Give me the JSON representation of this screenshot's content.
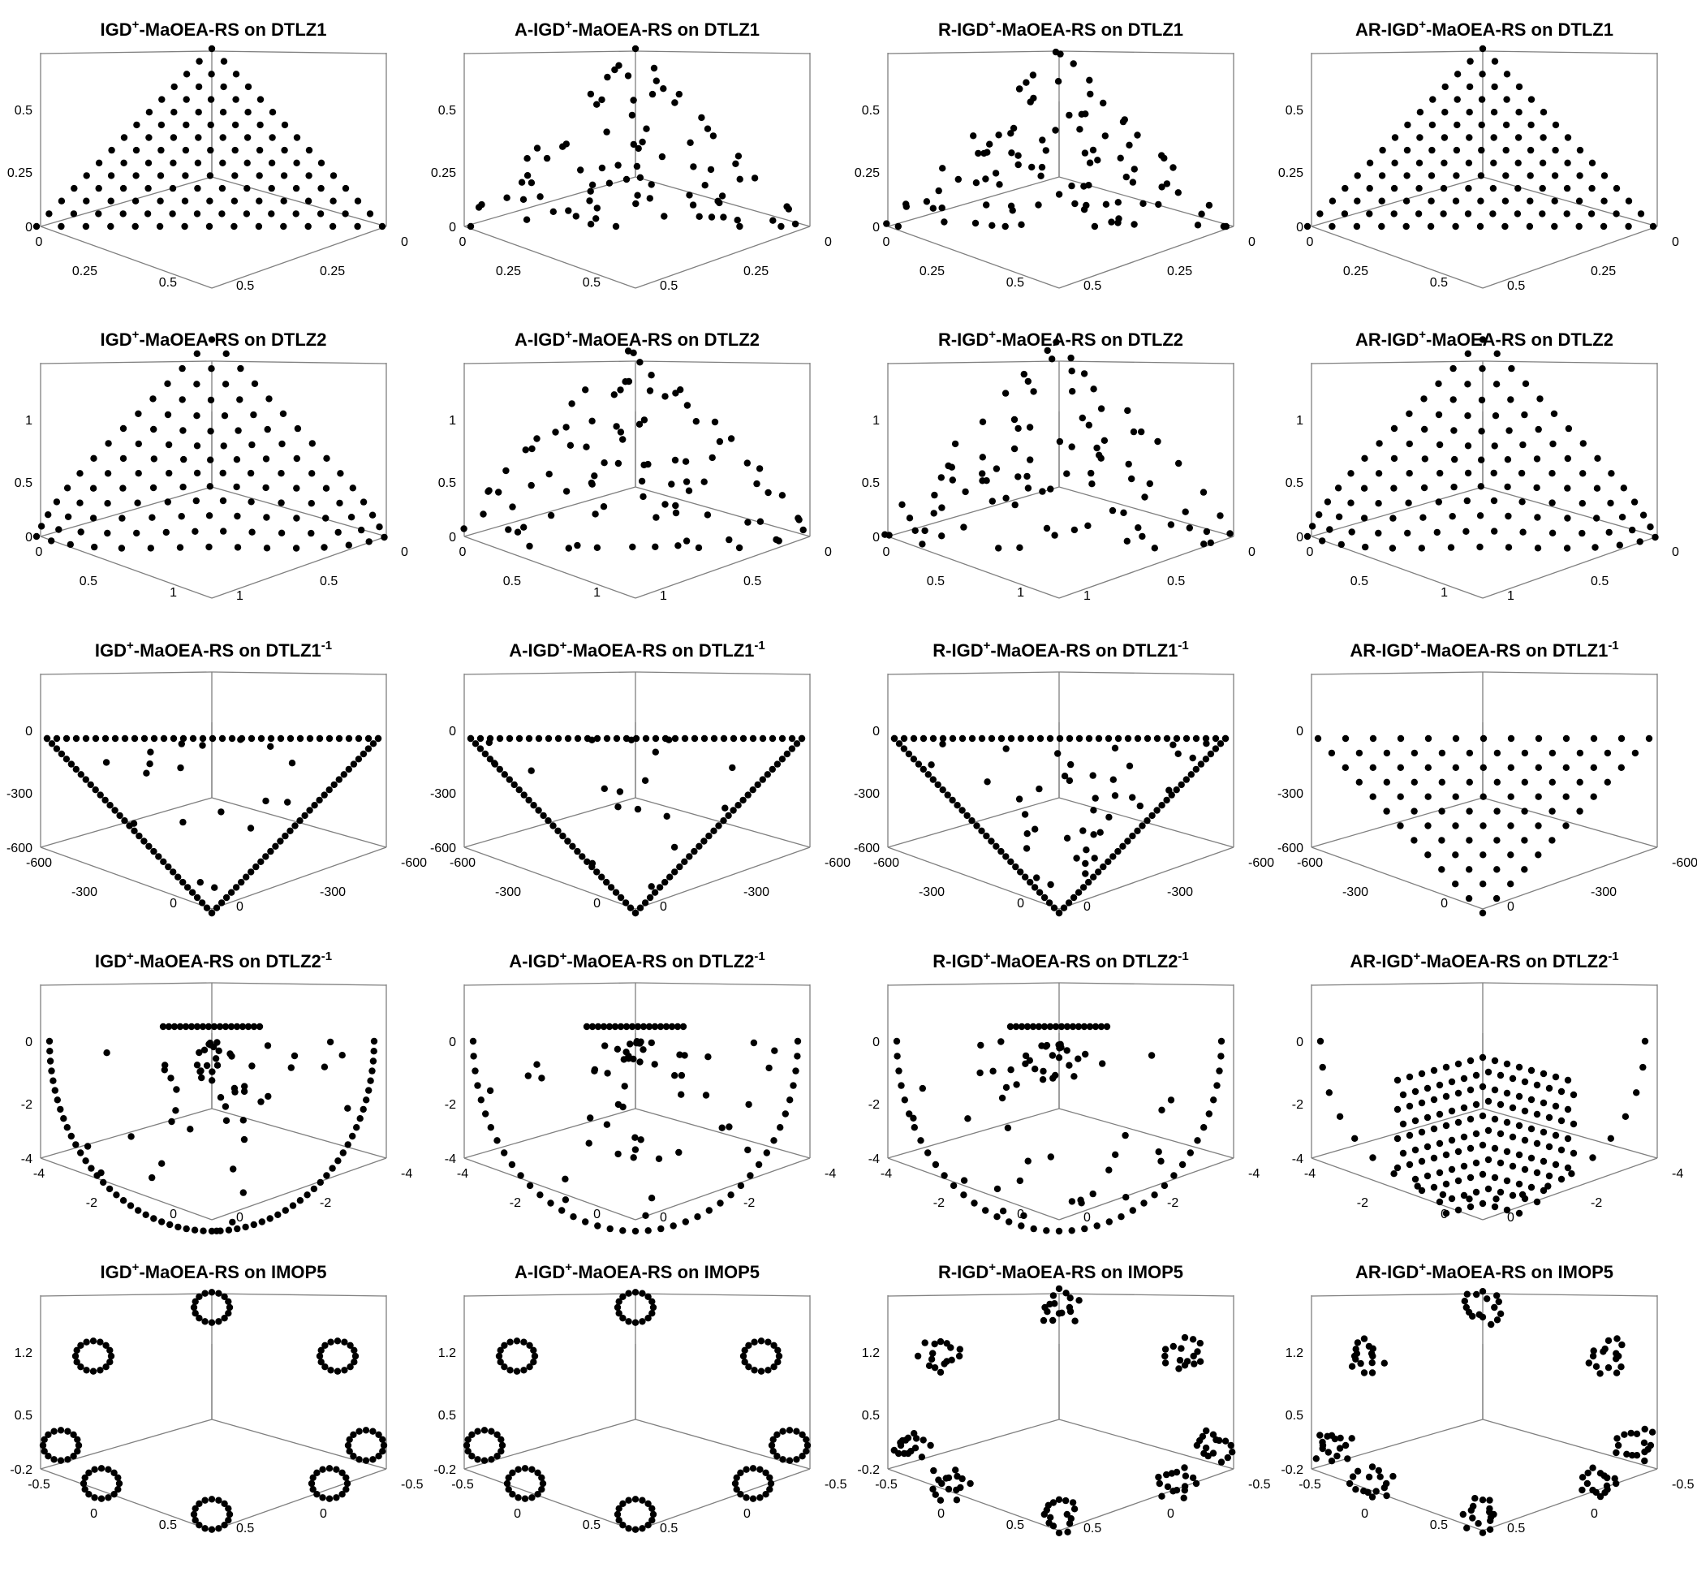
{
  "figure": {
    "point_color": "#000000",
    "axis_color": "#7f7f7f",
    "title_superscript": "+",
    "inverse_superscript": "-1"
  },
  "chart_data": [
    {
      "type": "scatter",
      "title_prefix": "IGD",
      "title_suffix": "-MaOEA-RS on DTLZ1",
      "inverse": false,
      "zticks": [
        "0",
        "0.25",
        "0.5"
      ],
      "xticks": [
        "0",
        "0.25",
        "0.5"
      ],
      "yticks": [
        "0",
        "0.25",
        "0.5"
      ],
      "zlim": [
        0,
        0.5
      ],
      "pattern": "lin_grid",
      "seed": 11
    },
    {
      "type": "scatter",
      "title_prefix": "A-IGD",
      "title_suffix": "-MaOEA-RS on DTLZ1",
      "inverse": false,
      "zticks": [
        "0",
        "0.25",
        "0.5"
      ],
      "xticks": [
        "0",
        "0.25",
        "0.5"
      ],
      "yticks": [
        "0",
        "0.25",
        "0.5"
      ],
      "zlim": [
        0,
        0.5
      ],
      "pattern": "lin_random",
      "seed": 12
    },
    {
      "type": "scatter",
      "title_prefix": "R-IGD",
      "title_suffix": "-MaOEA-RS on DTLZ1",
      "inverse": false,
      "zticks": [
        "0",
        "0.25",
        "0.5"
      ],
      "xticks": [
        "0",
        "0.25",
        "0.5"
      ],
      "yticks": [
        "0",
        "0.25",
        "0.5"
      ],
      "zlim": [
        0,
        0.5
      ],
      "pattern": "lin_random",
      "seed": 13
    },
    {
      "type": "scatter",
      "title_prefix": "AR-IGD",
      "title_suffix": "-MaOEA-RS on DTLZ1",
      "inverse": false,
      "zticks": [
        "0",
        "0.25",
        "0.5"
      ],
      "xticks": [
        "0",
        "0.25",
        "0.5"
      ],
      "yticks": [
        "0",
        "0.25",
        "0.5"
      ],
      "zlim": [
        0,
        0.5
      ],
      "pattern": "lin_grid",
      "seed": 14
    },
    {
      "type": "scatter",
      "title_prefix": "IGD",
      "title_suffix": "-MaOEA-RS on DTLZ2",
      "inverse": false,
      "zticks": [
        "0",
        "0.5",
        "1"
      ],
      "xticks": [
        "0",
        "0.5",
        "1"
      ],
      "yticks": [
        "0",
        "0.5",
        "1"
      ],
      "zlim": [
        0,
        1
      ],
      "pattern": "sph_grid",
      "seed": 21
    },
    {
      "type": "scatter",
      "title_prefix": "A-IGD",
      "title_suffix": "-MaOEA-RS on DTLZ2",
      "inverse": false,
      "zticks": [
        "0",
        "0.5",
        "1"
      ],
      "xticks": [
        "0",
        "0.5",
        "1"
      ],
      "yticks": [
        "0",
        "0.5",
        "1"
      ],
      "zlim": [
        0,
        1
      ],
      "pattern": "sph_random",
      "seed": 22
    },
    {
      "type": "scatter",
      "title_prefix": "R-IGD",
      "title_suffix": "-MaOEA-RS on DTLZ2",
      "inverse": false,
      "zticks": [
        "0",
        "0.5",
        "1"
      ],
      "xticks": [
        "0",
        "0.5",
        "1"
      ],
      "yticks": [
        "0",
        "0.5",
        "1"
      ],
      "zlim": [
        0,
        1
      ],
      "pattern": "sph_random",
      "seed": 23
    },
    {
      "type": "scatter",
      "title_prefix": "AR-IGD",
      "title_suffix": "-MaOEA-RS on DTLZ2",
      "inverse": false,
      "zticks": [
        "0",
        "0.5",
        "1"
      ],
      "xticks": [
        "0",
        "0.5",
        "1"
      ],
      "yticks": [
        "0",
        "0.5",
        "1"
      ],
      "zlim": [
        0,
        1
      ],
      "pattern": "sph_grid",
      "seed": 24
    },
    {
      "type": "scatter",
      "title_prefix": "IGD",
      "title_suffix": "-MaOEA-RS on DTLZ1",
      "inverse": true,
      "zticks": [
        "-600",
        "-300",
        "0"
      ],
      "xticks": [
        "-600",
        "-300",
        "0"
      ],
      "yticks": [
        "-600",
        "-300",
        "0"
      ],
      "zlim": [
        -600,
        0
      ],
      "pattern": "inv_edges",
      "seed": 31
    },
    {
      "type": "scatter",
      "title_prefix": "A-IGD",
      "title_suffix": "-MaOEA-RS on DTLZ1",
      "inverse": true,
      "zticks": [
        "-600",
        "-300",
        "0"
      ],
      "xticks": [
        "-600",
        "-300",
        "0"
      ],
      "yticks": [
        "-600",
        "-300",
        "0"
      ],
      "zlim": [
        -600,
        0
      ],
      "pattern": "inv_edges",
      "seed": 32
    },
    {
      "type": "scatter",
      "title_prefix": "R-IGD",
      "title_suffix": "-MaOEA-RS on DTLZ1",
      "inverse": true,
      "zticks": [
        "-600",
        "-300",
        "0"
      ],
      "xticks": [
        "-600",
        "-300",
        "0"
      ],
      "yticks": [
        "-600",
        "-300",
        "0"
      ],
      "zlim": [
        -600,
        0
      ],
      "pattern": "inv_mixed",
      "seed": 33
    },
    {
      "type": "scatter",
      "title_prefix": "AR-IGD",
      "title_suffix": "-MaOEA-RS on DTLZ1",
      "inverse": true,
      "zticks": [
        "-600",
        "-300",
        "0"
      ],
      "xticks": [
        "-600",
        "-300",
        "0"
      ],
      "yticks": [
        "-600",
        "-300",
        "0"
      ],
      "zlim": [
        -600,
        0
      ],
      "pattern": "inv_grid",
      "seed": 34
    },
    {
      "type": "scatter",
      "title_prefix": "IGD",
      "title_suffix": "-MaOEA-RS on DTLZ2",
      "inverse": true,
      "zticks": [
        "-4",
        "-2",
        "0"
      ],
      "xticks": [
        "-4",
        "-2",
        "0"
      ],
      "yticks": [
        "-4",
        "-2",
        "0"
      ],
      "zlim": [
        -4,
        0.3
      ],
      "pattern": "bowl_edges",
      "seed": 41
    },
    {
      "type": "scatter",
      "title_prefix": "A-IGD",
      "title_suffix": "-MaOEA-RS on DTLZ2",
      "inverse": true,
      "zticks": [
        "-4",
        "-2",
        "0"
      ],
      "xticks": [
        "-4",
        "-2",
        "0"
      ],
      "yticks": [
        "-4",
        "-2",
        "0"
      ],
      "zlim": [
        -4,
        0.3
      ],
      "pattern": "bowl_random",
      "seed": 42
    },
    {
      "type": "scatter",
      "title_prefix": "R-IGD",
      "title_suffix": "-MaOEA-RS on DTLZ2",
      "inverse": true,
      "zticks": [
        "-4",
        "-2",
        "0"
      ],
      "xticks": [
        "-4",
        "-2",
        "0"
      ],
      "yticks": [
        "-4",
        "-2",
        "0"
      ],
      "zlim": [
        -4,
        0.3
      ],
      "pattern": "bowl_random",
      "seed": 43
    },
    {
      "type": "scatter",
      "title_prefix": "AR-IGD",
      "title_suffix": "-MaOEA-RS on DTLZ2",
      "inverse": true,
      "zticks": [
        "-4",
        "-2",
        "0"
      ],
      "xticks": [
        "-4",
        "-2",
        "0"
      ],
      "yticks": [
        "-4",
        "-2",
        "0"
      ],
      "zlim": [
        -4,
        0.3
      ],
      "pattern": "bowl_grid",
      "seed": 44
    },
    {
      "type": "scatter",
      "title_prefix": "IGD",
      "title_suffix": "-MaOEA-RS on IMOP5",
      "inverse": false,
      "zticks": [
        "-0.2",
        "0.5",
        "1.2"
      ],
      "xticks": [
        "-0.5",
        "0",
        "0.5"
      ],
      "yticks": [
        "-0.5",
        "0",
        "0.5"
      ],
      "zlim": [
        -0.2,
        1.2
      ],
      "pattern": "imop_ring",
      "seed": 51
    },
    {
      "type": "scatter",
      "title_prefix": "A-IGD",
      "title_suffix": "-MaOEA-RS on IMOP5",
      "inverse": false,
      "zticks": [
        "-0.2",
        "0.5",
        "1.2"
      ],
      "xticks": [
        "-0.5",
        "0",
        "0.5"
      ],
      "yticks": [
        "-0.5",
        "0",
        "0.5"
      ],
      "zlim": [
        -0.2,
        1.2
      ],
      "pattern": "imop_ring",
      "seed": 52
    },
    {
      "type": "scatter",
      "title_prefix": "R-IGD",
      "title_suffix": "-MaOEA-RS on IMOP5",
      "inverse": false,
      "zticks": [
        "-0.2",
        "0.5",
        "1.2"
      ],
      "xticks": [
        "-0.5",
        "0",
        "0.5"
      ],
      "yticks": [
        "-0.5",
        "0",
        "0.5"
      ],
      "zlim": [
        -0.2,
        1.2
      ],
      "pattern": "imop_fill",
      "seed": 53
    },
    {
      "type": "scatter",
      "title_prefix": "AR-IGD",
      "title_suffix": "-MaOEA-RS on IMOP5",
      "inverse": false,
      "zticks": [
        "-0.2",
        "0.5",
        "1.2"
      ],
      "xticks": [
        "-0.5",
        "0",
        "0.5"
      ],
      "yticks": [
        "-0.5",
        "0",
        "0.5"
      ],
      "zlim": [
        -0.2,
        1.2
      ],
      "pattern": "imop_fill",
      "seed": 54
    }
  ]
}
